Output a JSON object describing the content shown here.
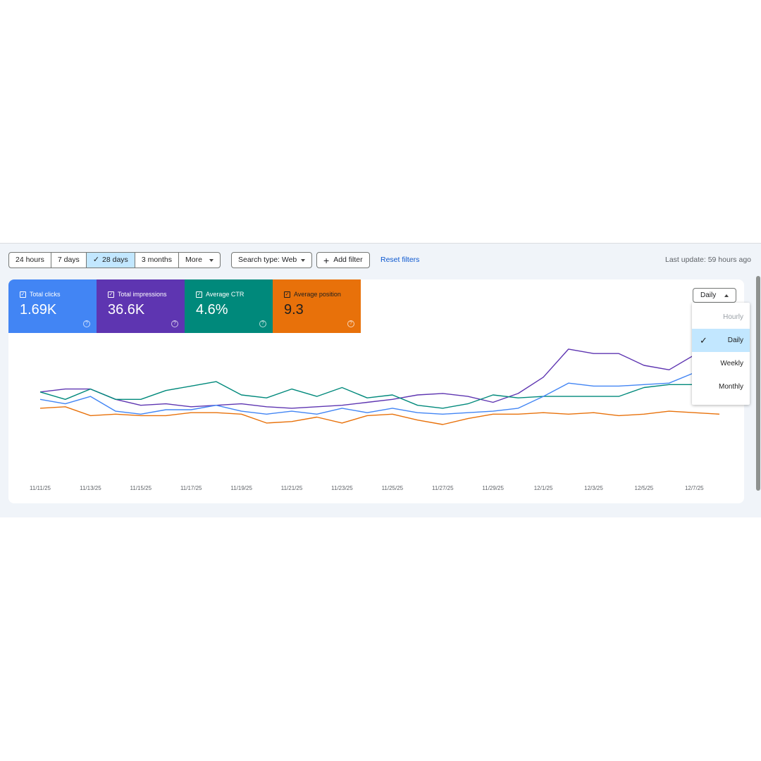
{
  "toolbar": {
    "ranges": [
      {
        "label": "24 hours",
        "active": false
      },
      {
        "label": "7 days",
        "active": false
      },
      {
        "label": "28 days",
        "active": true
      },
      {
        "label": "3 months",
        "active": false
      },
      {
        "label": "More",
        "active": false
      }
    ],
    "search_type": "Search type: Web",
    "add_filter": "Add filter",
    "reset_filters": "Reset filters",
    "last_update": "Last update: 59 hours ago"
  },
  "metrics": [
    {
      "label": "Total clicks",
      "value": "1.69K",
      "color": "#4285f4"
    },
    {
      "label": "Total impressions",
      "value": "36.6K",
      "color": "#5e35b1"
    },
    {
      "label": "Average CTR",
      "value": "4.6%",
      "color": "#00897b"
    },
    {
      "label": "Average position",
      "value": "9.3",
      "color": "#e8710a"
    }
  ],
  "granularity": {
    "current": "Daily",
    "options": [
      {
        "label": "Hourly",
        "disabled": true,
        "selected": false
      },
      {
        "label": "Daily",
        "disabled": false,
        "selected": true
      },
      {
        "label": "Weekly",
        "disabled": false,
        "selected": false
      },
      {
        "label": "Monthly",
        "disabled": false,
        "selected": false
      }
    ]
  },
  "chart_data": {
    "type": "line",
    "x": [
      "11/11/25",
      "11/12/25",
      "11/13/25",
      "11/14/25",
      "11/15/25",
      "11/16/25",
      "11/17/25",
      "11/18/25",
      "11/19/25",
      "11/20/25",
      "11/21/25",
      "11/22/25",
      "11/23/25",
      "11/24/25",
      "11/25/25",
      "11/26/25",
      "11/27/25",
      "11/28/25",
      "11/29/25",
      "11/30/25",
      "12/1/25",
      "12/2/25",
      "12/3/25",
      "12/4/25",
      "12/5/25",
      "12/6/25",
      "12/7/25",
      "12/8/25"
    ],
    "x_tick_labels": [
      "11/11/25",
      "11/13/25",
      "11/15/25",
      "11/17/25",
      "11/19/25",
      "11/21/25",
      "11/23/25",
      "11/25/25",
      "11/27/25",
      "11/29/25",
      "12/1/25",
      "12/3/25",
      "12/5/25",
      "12/7/25"
    ],
    "ylim": [
      0,
      1
    ],
    "grid": false,
    "series": [
      {
        "metric": "Total impressions",
        "color": "#5e35b1",
        "values": [
          0.62,
          0.64,
          0.64,
          0.57,
          0.53,
          0.54,
          0.52,
          0.53,
          0.54,
          0.52,
          0.51,
          0.52,
          0.53,
          0.55,
          0.57,
          0.6,
          0.61,
          0.59,
          0.55,
          0.61,
          0.72,
          0.91,
          0.88,
          0.88,
          0.8,
          0.77,
          0.87,
          0.9
        ]
      },
      {
        "metric": "Average CTR",
        "color": "#00897b",
        "values": [
          0.62,
          0.57,
          0.64,
          0.57,
          0.57,
          0.63,
          0.66,
          0.69,
          0.6,
          0.58,
          0.64,
          0.59,
          0.65,
          0.58,
          0.6,
          0.53,
          0.51,
          0.54,
          0.6,
          0.58,
          0.59,
          0.59,
          0.59,
          0.59,
          0.65,
          0.67,
          0.67,
          0.6
        ]
      },
      {
        "metric": "Total clicks",
        "color": "#4285f4",
        "values": [
          0.57,
          0.54,
          0.59,
          0.49,
          0.47,
          0.5,
          0.5,
          0.53,
          0.49,
          0.47,
          0.49,
          0.47,
          0.51,
          0.48,
          0.51,
          0.48,
          0.47,
          0.48,
          0.49,
          0.51,
          0.59,
          0.68,
          0.66,
          0.66,
          0.67,
          0.68,
          0.75,
          0.78
        ]
      },
      {
        "metric": "Average position",
        "color": "#e8710a",
        "values": [
          0.51,
          0.52,
          0.46,
          0.47,
          0.46,
          0.46,
          0.48,
          0.48,
          0.47,
          0.41,
          0.42,
          0.45,
          0.41,
          0.46,
          0.47,
          0.43,
          0.4,
          0.44,
          0.47,
          0.47,
          0.48,
          0.47,
          0.48,
          0.46,
          0.47,
          0.49,
          0.48,
          0.47
        ]
      }
    ]
  }
}
